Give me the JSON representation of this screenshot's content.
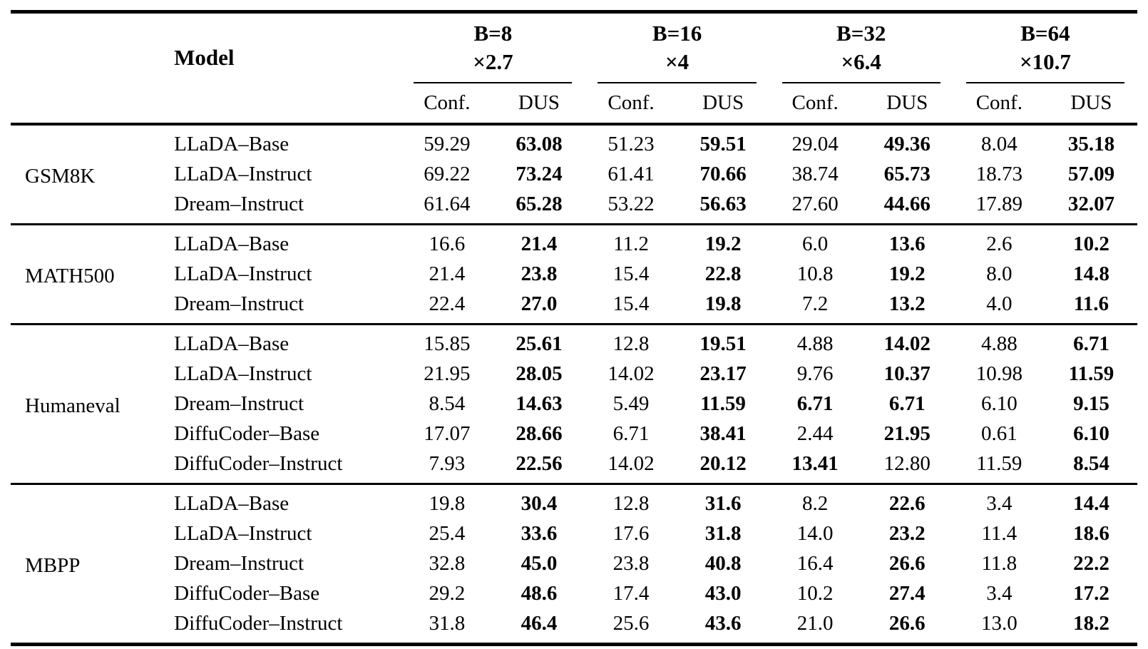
{
  "table": {
    "model_header": "Model",
    "groups": [
      {
        "b": "B=8",
        "mult": "×2.7"
      },
      {
        "b": "B=16",
        "mult": "×4"
      },
      {
        "b": "B=32",
        "mult": "×6.4"
      },
      {
        "b": "B=64",
        "mult": "×10.7"
      }
    ],
    "subheaders": [
      "Conf.",
      "DUS"
    ],
    "sections": [
      {
        "benchmark": "GSM8K",
        "rows": [
          {
            "model": "LLaDA–Base",
            "values": [
              "59.29",
              "63.08",
              "51.23",
              "59.51",
              "29.04",
              "49.36",
              "8.04",
              "35.18"
            ],
            "bold": [
              false,
              true,
              false,
              true,
              false,
              true,
              false,
              true
            ]
          },
          {
            "model": "LLaDA–Instruct",
            "values": [
              "69.22",
              "73.24",
              "61.41",
              "70.66",
              "38.74",
              "65.73",
              "18.73",
              "57.09"
            ],
            "bold": [
              false,
              true,
              false,
              true,
              false,
              true,
              false,
              true
            ]
          },
          {
            "model": "Dream–Instruct",
            "values": [
              "61.64",
              "65.28",
              "53.22",
              "56.63",
              "27.60",
              "44.66",
              "17.89",
              "32.07"
            ],
            "bold": [
              false,
              true,
              false,
              true,
              false,
              true,
              false,
              true
            ]
          }
        ]
      },
      {
        "benchmark": "MATH500",
        "rows": [
          {
            "model": "LLaDA–Base",
            "values": [
              "16.6",
              "21.4",
              "11.2",
              "19.2",
              "6.0",
              "13.6",
              "2.6",
              "10.2"
            ],
            "bold": [
              false,
              true,
              false,
              true,
              false,
              true,
              false,
              true
            ]
          },
          {
            "model": "LLaDA–Instruct",
            "values": [
              "21.4",
              "23.8",
              "15.4",
              "22.8",
              "10.8",
              "19.2",
              "8.0",
              "14.8"
            ],
            "bold": [
              false,
              true,
              false,
              true,
              false,
              true,
              false,
              true
            ]
          },
          {
            "model": "Dream–Instruct",
            "values": [
              "22.4",
              "27.0",
              "15.4",
              "19.8",
              "7.2",
              "13.2",
              "4.0",
              "11.6"
            ],
            "bold": [
              false,
              true,
              false,
              true,
              false,
              true,
              false,
              true
            ]
          }
        ]
      },
      {
        "benchmark": "Humaneval",
        "rows": [
          {
            "model": "LLaDA–Base",
            "values": [
              "15.85",
              "25.61",
              "12.8",
              "19.51",
              "4.88",
              "14.02",
              "4.88",
              "6.71"
            ],
            "bold": [
              false,
              true,
              false,
              true,
              false,
              true,
              false,
              true
            ]
          },
          {
            "model": "LLaDA–Instruct",
            "values": [
              "21.95",
              "28.05",
              "14.02",
              "23.17",
              "9.76",
              "10.37",
              "10.98",
              "11.59"
            ],
            "bold": [
              false,
              true,
              false,
              true,
              false,
              true,
              false,
              true
            ]
          },
          {
            "model": "Dream–Instruct",
            "values": [
              "8.54",
              "14.63",
              "5.49",
              "11.59",
              "6.71",
              "6.71",
              "6.10",
              "9.15"
            ],
            "bold": [
              false,
              true,
              false,
              true,
              true,
              true,
              false,
              true
            ]
          },
          {
            "model": "DiffuCoder–Base",
            "values": [
              "17.07",
              "28.66",
              "6.71",
              "38.41",
              "2.44",
              "21.95",
              "0.61",
              "6.10"
            ],
            "bold": [
              false,
              true,
              false,
              true,
              false,
              true,
              false,
              true
            ]
          },
          {
            "model": "DiffuCoder–Instruct",
            "values": [
              "7.93",
              "22.56",
              "14.02",
              "20.12",
              "13.41",
              "12.80",
              "11.59",
              "8.54"
            ],
            "bold": [
              false,
              true,
              false,
              true,
              true,
              false,
              false,
              true
            ]
          }
        ]
      },
      {
        "benchmark": "MBPP",
        "rows": [
          {
            "model": "LLaDA–Base",
            "values": [
              "19.8",
              "30.4",
              "12.8",
              "31.6",
              "8.2",
              "22.6",
              "3.4",
              "14.4"
            ],
            "bold": [
              false,
              true,
              false,
              true,
              false,
              true,
              false,
              true
            ]
          },
          {
            "model": "LLaDA–Instruct",
            "values": [
              "25.4",
              "33.6",
              "17.6",
              "31.8",
              "14.0",
              "23.2",
              "11.4",
              "18.6"
            ],
            "bold": [
              false,
              true,
              false,
              true,
              false,
              true,
              false,
              true
            ]
          },
          {
            "model": "Dream–Instruct",
            "values": [
              "32.8",
              "45.0",
              "23.8",
              "40.8",
              "16.4",
              "26.6",
              "11.8",
              "22.2"
            ],
            "bold": [
              false,
              true,
              false,
              true,
              false,
              true,
              false,
              true
            ]
          },
          {
            "model": "DiffuCoder–Base",
            "values": [
              "29.2",
              "48.6",
              "17.4",
              "43.0",
              "10.2",
              "27.4",
              "3.4",
              "17.2"
            ],
            "bold": [
              false,
              true,
              false,
              true,
              false,
              true,
              false,
              true
            ]
          },
          {
            "model": "DiffuCoder–Instruct",
            "values": [
              "31.8",
              "46.4",
              "25.6",
              "43.6",
              "21.0",
              "26.6",
              "13.0",
              "18.2"
            ],
            "bold": [
              false,
              true,
              false,
              true,
              false,
              true,
              false,
              true
            ]
          }
        ]
      }
    ],
    "colors": {
      "text": "#000000",
      "background": "#ffffff",
      "rule": "#000000"
    }
  }
}
